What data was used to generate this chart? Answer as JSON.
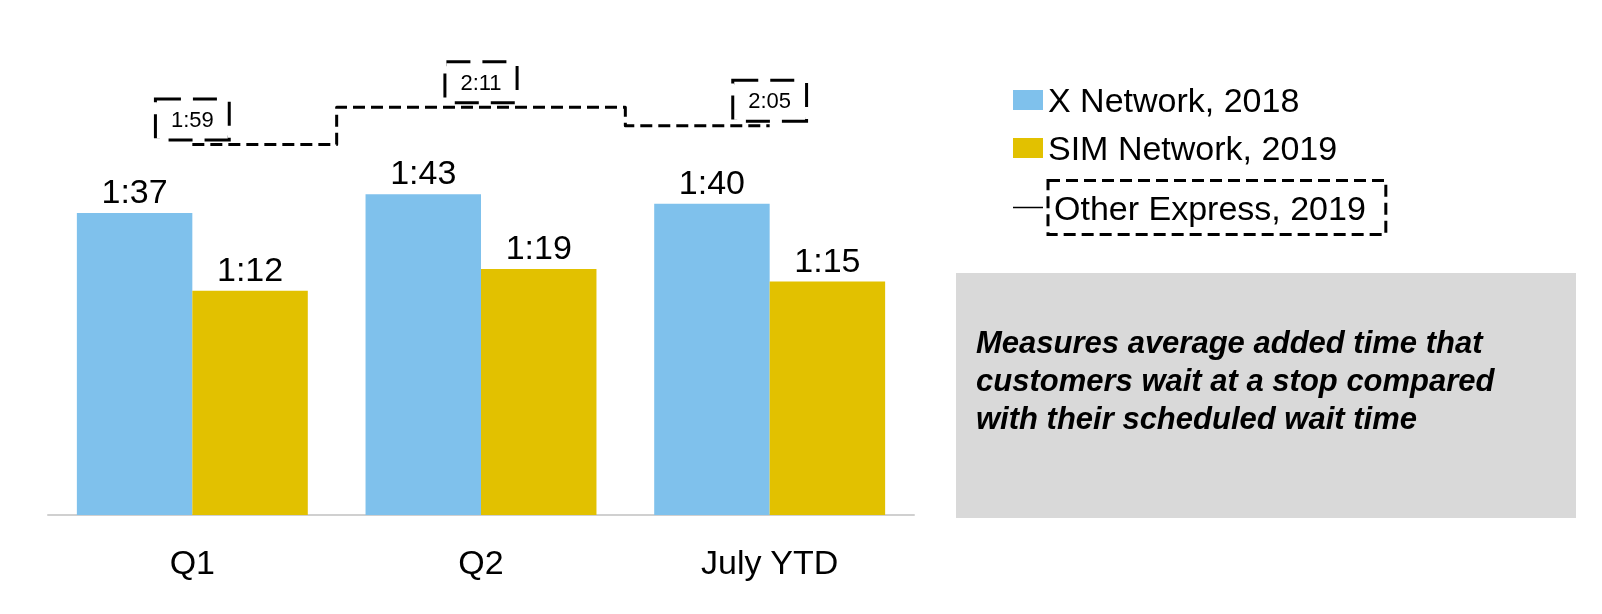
{
  "chart_data": {
    "type": "bar",
    "categories": [
      "Q1",
      "Q2",
      "July YTD"
    ],
    "series": [
      {
        "name": "X Network, 2018",
        "color": "#7fc1ec",
        "values": [
          97,
          103,
          100
        ],
        "value_labels": [
          "1:37",
          "1:43",
          "1:40"
        ]
      },
      {
        "name": "SIM Network, 2019",
        "color": "#e2c100",
        "values": [
          72,
          79,
          75
        ],
        "value_labels": [
          "1:12",
          "1:19",
          "1:15"
        ]
      },
      {
        "name": "Other Express, 2019",
        "type": "step",
        "color": "#000000",
        "line_style": "dashed",
        "values": [
          119,
          131,
          125
        ],
        "value_labels": [
          "1:59",
          "2:11",
          "2:05"
        ]
      }
    ],
    "annotations": [
      "Measures average added time that customers wait at a stop compared with their scheduled wait time"
    ],
    "legend": "right",
    "grid": false
  }
}
